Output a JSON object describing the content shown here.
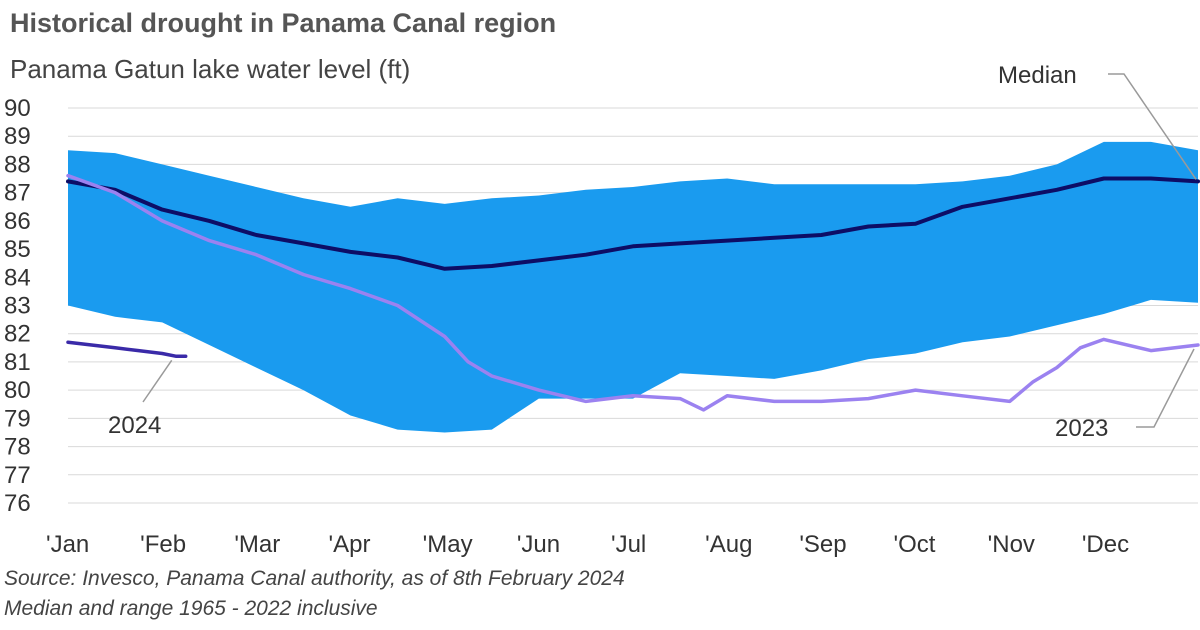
{
  "title": "Historical drought in Panama Canal region",
  "subtitle": "Panama Gatun lake water level (ft)",
  "source_note": "Source: Invesco, Panama Canal authority, as of 8th February 2024",
  "range_note": "Median and range 1965 - 2022 inclusive",
  "colors": {
    "range": "#1a9bef",
    "median": "#0d0d66",
    "y2024": "#3a2aa8",
    "y2023": "#9b82f0",
    "grid": "#d9d9d9",
    "leader": "#9a9a9a"
  },
  "chart_data": {
    "type": "area",
    "title": "Historical drought in Panama Canal region",
    "ylabel": "Panama Gatun lake water level (ft)",
    "ylim": [
      76,
      90
    ],
    "y_ticks": [
      76,
      77,
      78,
      79,
      80,
      81,
      82,
      83,
      84,
      85,
      86,
      87,
      88,
      89,
      90
    ],
    "x_ticks": [
      "'Jan",
      "'Feb",
      "'Mar",
      "'Apr",
      "'May",
      "'Jun",
      "'Jul",
      "'Aug",
      "'Sep",
      "'Oct",
      "'Nov",
      "'Dec"
    ],
    "grid": true,
    "range_band": {
      "x": [
        0,
        0.5,
        1,
        1.5,
        2,
        2.5,
        3,
        3.5,
        4,
        4.5,
        5,
        5.5,
        6,
        6.5,
        7,
        7.5,
        8,
        8.5,
        9,
        9.5,
        10,
        10.5,
        11,
        11.5,
        12
      ],
      "upper": [
        88.5,
        88.4,
        88.0,
        87.6,
        87.2,
        86.8,
        86.5,
        86.8,
        86.6,
        86.8,
        86.9,
        87.1,
        87.2,
        87.4,
        87.5,
        87.3,
        87.3,
        87.3,
        87.3,
        87.4,
        87.6,
        88.0,
        88.8,
        88.8,
        88.5
      ],
      "lower": [
        83.0,
        82.6,
        82.4,
        81.6,
        80.8,
        80.0,
        79.1,
        78.6,
        78.5,
        78.6,
        79.7,
        79.7,
        79.7,
        80.6,
        80.5,
        80.4,
        80.7,
        81.1,
        81.3,
        81.7,
        81.9,
        82.3,
        82.7,
        83.2,
        83.1
      ]
    },
    "series": [
      {
        "name": "Median",
        "x": [
          0,
          0.5,
          1,
          1.5,
          2,
          2.5,
          3,
          3.5,
          4,
          4.5,
          5,
          5.5,
          6,
          6.5,
          7,
          7.5,
          8,
          8.5,
          9,
          9.5,
          10,
          10.5,
          11,
          11.5,
          12
        ],
        "values": [
          87.4,
          87.1,
          86.4,
          86.0,
          85.5,
          85.2,
          84.9,
          84.7,
          84.3,
          84.4,
          84.6,
          84.8,
          85.1,
          85.2,
          85.3,
          85.4,
          85.5,
          85.8,
          85.9,
          86.5,
          86.8,
          87.1,
          87.5,
          87.5,
          87.4
        ]
      },
      {
        "name": "2024",
        "x": [
          0,
          0.25,
          0.5,
          0.75,
          1,
          1.15,
          1.25
        ],
        "values": [
          81.7,
          81.6,
          81.5,
          81.4,
          81.3,
          81.2,
          81.2
        ]
      },
      {
        "name": "2023",
        "x": [
          0,
          0.5,
          1,
          1.5,
          2,
          2.5,
          3,
          3.5,
          4,
          4.25,
          4.5,
          5,
          5.5,
          6,
          6.5,
          6.75,
          7,
          7.5,
          8,
          8.5,
          9,
          9.5,
          10,
          10.25,
          10.5,
          10.75,
          11,
          11.5,
          12
        ],
        "values": [
          87.6,
          87.0,
          86.0,
          85.3,
          84.8,
          84.1,
          83.6,
          83.0,
          81.9,
          81.0,
          80.5,
          80.0,
          79.6,
          79.8,
          79.7,
          79.3,
          79.8,
          79.6,
          79.6,
          79.7,
          80.0,
          79.8,
          79.6,
          80.3,
          80.8,
          81.5,
          81.8,
          81.4,
          81.6
        ]
      }
    ],
    "annotations": {
      "median_label": "Median",
      "label_2024": "2024",
      "label_2023": "2023"
    }
  }
}
